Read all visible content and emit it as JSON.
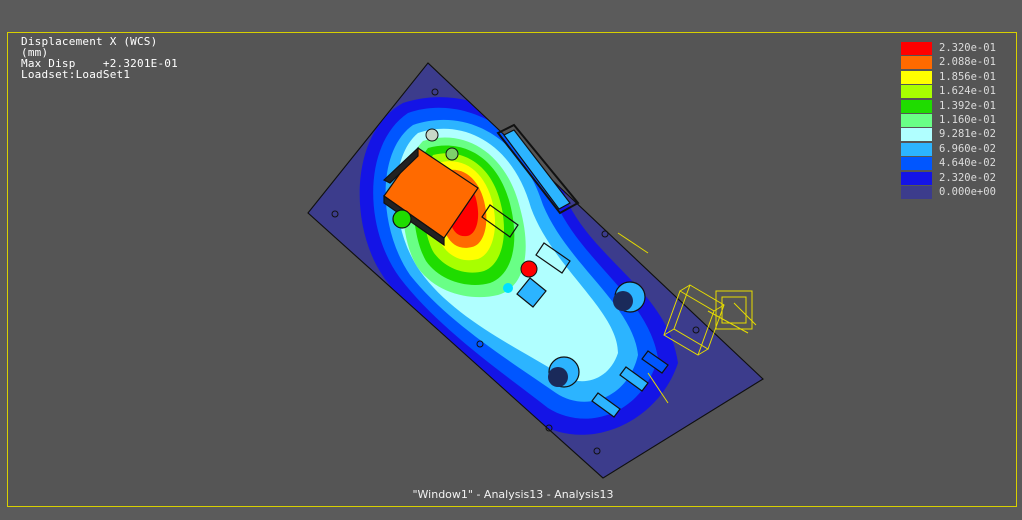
{
  "viewport": {
    "result_title": "Displacement X (WCS)",
    "units": "(mm)",
    "max_disp_label": "Max Disp",
    "max_disp_value": "+2.3201E-01",
    "loadset": "Loadset:LoadSet1",
    "window_caption": "\"Window1\" - Analysis13 - Analysis13"
  },
  "legend": {
    "entries": [
      {
        "label": "2.320e-01",
        "color": "#ff0000"
      },
      {
        "label": "2.088e-01",
        "color": "#ff6a00"
      },
      {
        "label": "1.856e-01",
        "color": "#ffff00"
      },
      {
        "label": "1.624e-01",
        "color": "#a8ff00"
      },
      {
        "label": "1.392e-01",
        "color": "#1fdc00"
      },
      {
        "label": "1.160e-01",
        "color": "#69ff86"
      },
      {
        "label": "9.281e-02",
        "color": "#b0ffff"
      },
      {
        "label": "6.960e-02",
        "color": "#2cb4ff"
      },
      {
        "label": "4.640e-02",
        "color": "#0056ff"
      },
      {
        "label": "2.320e-02",
        "color": "#1414e6"
      },
      {
        "label": "0.000e+00",
        "color": "#3c3c8c"
      }
    ]
  }
}
